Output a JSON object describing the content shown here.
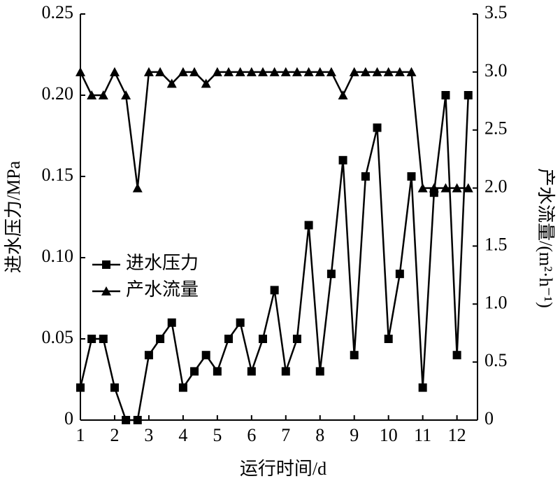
{
  "chart_data": {
    "type": "line",
    "x_label": "运行时间/d",
    "y_label": "进水压力/MPa",
    "y2_label": "产水流量/(m²·h⁻¹)",
    "x": [
      1,
      1.33,
      1.67,
      2,
      2.33,
      2.67,
      3,
      3.33,
      3.67,
      4,
      4.33,
      4.67,
      5,
      5.33,
      5.67,
      6,
      6.33,
      6.67,
      7,
      7.33,
      7.67,
      8,
      8.33,
      8.67,
      9,
      9.33,
      9.67,
      10,
      10.33,
      10.67,
      11,
      11.33,
      11.67,
      12,
      12.33
    ],
    "series": [
      {
        "name": "进水压力",
        "color": "#000000",
        "marker": "square",
        "values": [
          0.02,
          0.05,
          0.05,
          0.02,
          0,
          0,
          0.04,
          0.05,
          0.06,
          0.02,
          0.03,
          0.04,
          0.03,
          0.05,
          0.06,
          0.03,
          0.05,
          0.08,
          0.03,
          0.05,
          0.12,
          0.03,
          0.09,
          0.16,
          0.04,
          0.15,
          0.18,
          0.05,
          0.09,
          0.15,
          0.02,
          0.14,
          0.2,
          0.04,
          0.2
        ]
      },
      {
        "name": "产水流量",
        "color": "#000000",
        "marker": "triangle",
        "axis": "y2",
        "values": [
          3.0,
          2.8,
          2.8,
          3.0,
          2.8,
          2.0,
          3.0,
          3.0,
          2.9,
          3.0,
          3.0,
          2.9,
          3.0,
          3.0,
          3.0,
          3.0,
          3.0,
          3.0,
          3.0,
          3.0,
          3.0,
          3.0,
          3.0,
          2.8,
          3.0,
          3.0,
          3.0,
          3.0,
          3.0,
          3.0,
          2.0,
          2.0,
          2.0,
          2.0,
          2.0
        ]
      }
    ],
    "xlim": [
      1,
      12.6
    ],
    "xticks": [
      1,
      2,
      3,
      4,
      5,
      6,
      7,
      8,
      9,
      10,
      11,
      12
    ],
    "ylim": [
      0,
      0.25
    ],
    "yticks": [
      0,
      0.05,
      {
        "value": 0.1,
        "label": "0.10"
      },
      0.15,
      {
        "value": 0.2,
        "label": "0.20"
      },
      0.25
    ],
    "y2lim": [
      0,
      3.5
    ],
    "y2ticks": [
      0,
      0.5,
      {
        "value": 1,
        "label": "1.0"
      },
      1.5,
      {
        "value": 2,
        "label": "2.0"
      },
      2.5,
      {
        "value": 3,
        "label": "3.0"
      },
      3.5
    ],
    "grid": false,
    "legend": "center-left"
  }
}
